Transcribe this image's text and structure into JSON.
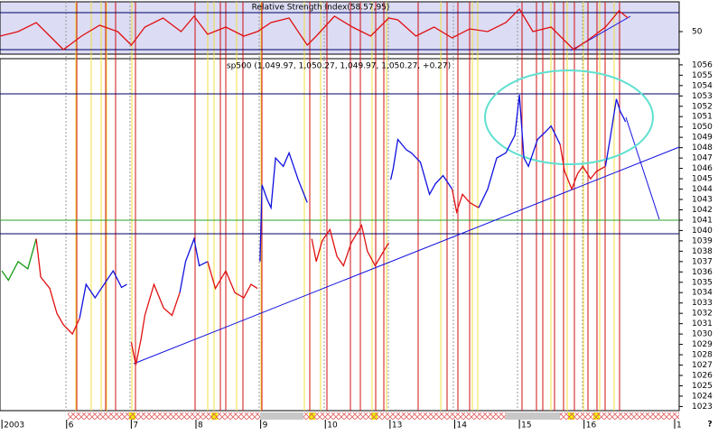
{
  "chart_data": [
    {
      "type": "line",
      "title": "Relative Strength Index(58.57,95)",
      "xlim": [
        -0.03,
        10.47
      ],
      "ylim": [
        25.6,
        82.2
      ],
      "yticks": [
        50
      ],
      "series": [
        {
          "color": "#e01010",
          "x": [
            -0.03,
            0.25,
            0.53,
            0.81,
            0.95,
            1.23,
            1.51,
            1.79,
            2.0,
            2.21,
            2.49,
            2.77,
            2.97,
            3.18,
            3.46,
            3.74,
            3.95,
            4.16,
            4.44,
            4.72,
            4.86,
            5.14,
            5.42,
            5.7,
            5.98,
            6.12,
            6.4,
            6.68,
            6.96,
            7.23,
            7.51,
            7.79,
            8.0,
            8.21,
            8.49,
            8.7,
            8.84,
            9.05,
            9.33,
            9.54,
            9.68
          ],
          "values": [
            45.1,
            50,
            59.8,
            40.2,
            30.5,
            45.1,
            56.8,
            50,
            35.4,
            54.9,
            64.6,
            50,
            66.6,
            47.1,
            54.9,
            45.1,
            50,
            59.8,
            64.6,
            35.4,
            45.1,
            66.6,
            54.9,
            45.1,
            64.6,
            62.7,
            45.1,
            54.9,
            43.2,
            52.9,
            50,
            59.8,
            74.4,
            50,
            54.9,
            40.2,
            30.5,
            40.2,
            54.9,
            72.4,
            64.6
          ]
        }
      ]
    },
    {
      "type": "line",
      "title": "sp500 (1,049.97, 1,050.27, 1,049.97, 1,050.27, +0.27)",
      "xlim": [
        -0.03,
        10.47
      ],
      "ylim": [
        1022.6,
        1056.6
      ],
      "yticks": [
        1023,
        1024,
        1025,
        1026,
        1027,
        1028,
        1029,
        1030,
        1031,
        1032,
        1033,
        1034,
        1035,
        1036,
        1037,
        1038,
        1039,
        1040,
        1041,
        1042,
        1043,
        1044,
        1045,
        1046,
        1047,
        1048,
        1049,
        1050,
        1051,
        1052,
        1053,
        1054,
        1055,
        1056
      ],
      "xticks": [
        {
          "value": 0,
          "label": "2003"
        },
        {
          "value": 1,
          "label": "6"
        },
        {
          "value": 2,
          "label": "7"
        },
        {
          "value": 3,
          "label": "8"
        },
        {
          "value": 4,
          "label": "9"
        },
        {
          "value": 5,
          "label": "10"
        },
        {
          "value": 6,
          "label": "13"
        },
        {
          "value": 7,
          "label": "14"
        },
        {
          "value": 8,
          "label": "15"
        },
        {
          "value": 9,
          "label": "16"
        },
        {
          "value": 10.4,
          "label": "1"
        }
      ],
      "corner_label": "?",
      "series": [
        {
          "color": "#139a13",
          "x": [
            0,
            0.1,
            0.25,
            0.4,
            0.53
          ],
          "values": [
            1036.1,
            1035.2,
            1037.0,
            1036.3,
            1039.2
          ]
        },
        {
          "color": "#e01010",
          "x": [
            0.53,
            0.6,
            0.74,
            0.85,
            0.95,
            1.09,
            1.2
          ],
          "values": [
            1039.2,
            1035.5,
            1034.4,
            1032.0,
            1030.9,
            1030.0,
            1031.5
          ]
        },
        {
          "color": "#1010e0",
          "x": [
            1.2,
            1.3,
            1.44,
            1.6,
            1.72,
            1.85,
            1.93
          ],
          "values": [
            1031.5,
            1034.8,
            1033.5,
            1035.0,
            1036.1,
            1034.5,
            1034.8
          ]
        },
        {
          "color": "#e01010",
          "x": [
            2.0,
            2.07,
            2.15,
            2.21,
            2.35,
            2.5,
            2.63,
            2.75
          ],
          "values": [
            1029.2,
            1027.0,
            1029.5,
            1031.8,
            1034.8,
            1032.5,
            1031.8,
            1034.0
          ]
        },
        {
          "color": "#1010e0",
          "x": [
            2.75,
            2.84,
            2.97,
            3.05,
            3.18
          ],
          "values": [
            1034.0,
            1037.0,
            1039.2,
            1036.6,
            1037.0
          ]
        },
        {
          "color": "#e01010",
          "x": [
            3.18,
            3.3,
            3.46,
            3.6,
            3.74,
            3.85,
            3.95
          ],
          "values": [
            1037.0,
            1034.4,
            1036.1,
            1034.0,
            1033.5,
            1034.8,
            1034.4
          ]
        },
        {
          "color": "#1010e0",
          "x": [
            3.99,
            4.02,
            4.1,
            4.16,
            4.23,
            4.35,
            4.44,
            4.58,
            4.72
          ],
          "values": [
            1037.0,
            1044.4,
            1043.0,
            1042.2,
            1047.0,
            1046.2,
            1047.5,
            1044.9,
            1042.7
          ]
        },
        {
          "color": "#e01010",
          "x": [
            4.79,
            4.86,
            4.95,
            5.07,
            5.18,
            5.28,
            5.4,
            5.56,
            5.65,
            5.77,
            5.9,
            5.98
          ],
          "values": [
            1039.2,
            1037.0,
            1039.0,
            1040.1,
            1037.5,
            1036.6,
            1038.8,
            1040.5,
            1038.0,
            1036.6,
            1038.0,
            1038.8
          ]
        },
        {
          "color": "#1010e0",
          "x": [
            6.01,
            6.05,
            6.12,
            6.25,
            6.33,
            6.47,
            6.61,
            6.7,
            6.82,
            6.96
          ],
          "values": [
            1044.9,
            1046.0,
            1048.8,
            1047.8,
            1047.5,
            1046.6,
            1043.5,
            1044.5,
            1045.3,
            1044.0
          ]
        },
        {
          "color": "#e01010",
          "x": [
            6.96,
            7.03,
            7.12,
            7.23,
            7.37
          ],
          "values": [
            1044.0,
            1041.8,
            1043.5,
            1042.7,
            1042.2
          ]
        },
        {
          "color": "#1010e0",
          "x": [
            7.37,
            7.51,
            7.65,
            7.79,
            7.93,
            8.0,
            8.07,
            8.14,
            8.28,
            8.4,
            8.49,
            8.63
          ],
          "values": [
            1042.2,
            1044.0,
            1047.0,
            1047.5,
            1049.2,
            1053.1,
            1047.0,
            1046.2,
            1048.8,
            1049.5,
            1050.1,
            1048.3
          ]
        },
        {
          "color": "#e01010",
          "x": [
            8.63,
            8.7,
            8.81,
            8.9,
            8.98,
            9.1,
            9.19,
            9.33
          ],
          "values": [
            1048.3,
            1045.7,
            1044.0,
            1045.5,
            1046.2,
            1045.0,
            1045.7,
            1046.2
          ]
        },
        {
          "color": "#1010e0",
          "x": [
            9.33,
            9.4,
            9.5,
            9.56,
            9.61,
            9.64
          ],
          "values": [
            1046.2,
            1048.8,
            1052.7,
            1051.5,
            1050.9,
            1050.5
          ]
        }
      ]
    }
  ]
}
